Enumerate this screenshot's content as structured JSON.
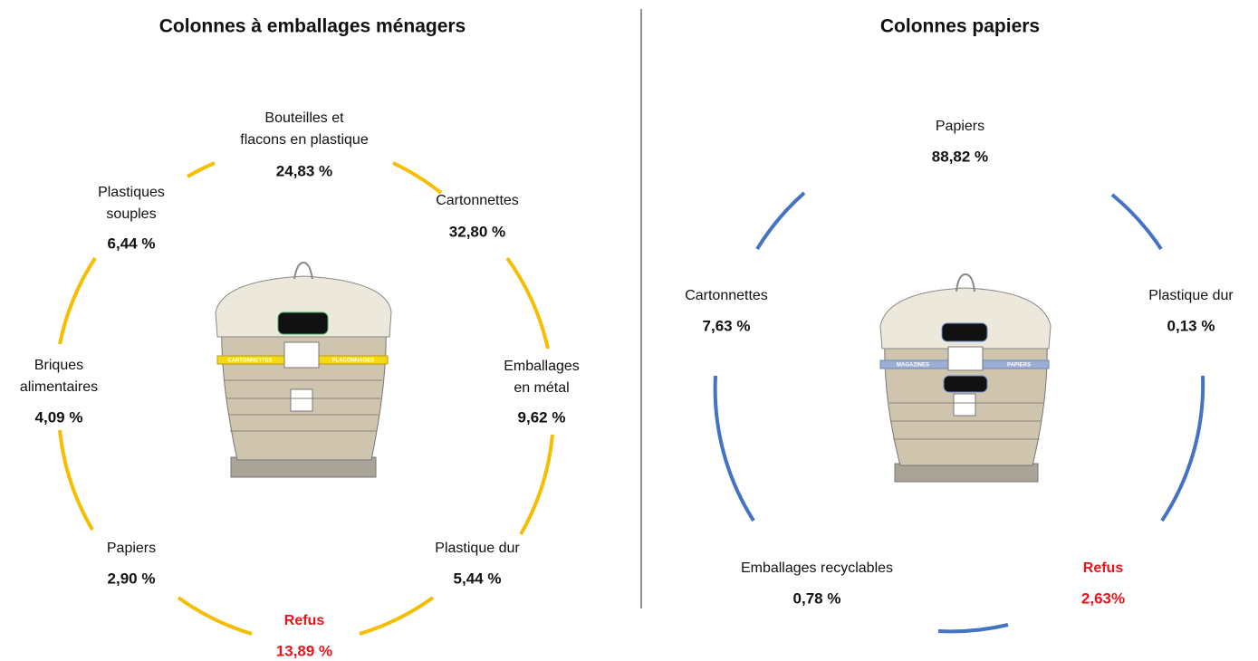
{
  "panels": [
    {
      "title": "Colonnes à emballages ménagers",
      "bin_labels": [
        "CARTONNETTES",
        "FLACONNAGES"
      ],
      "items": [
        {
          "label": [
            "Bouteilles et",
            "flacons en plastique"
          ],
          "value": "24,83 %"
        },
        {
          "label": [
            "Cartonnettes"
          ],
          "value": "32,80 %"
        },
        {
          "label": [
            "Plastiques",
            "souples"
          ],
          "value": "6,44 %"
        },
        {
          "label": [
            "Emballages",
            "en métal"
          ],
          "value": "9,62 %"
        },
        {
          "label": [
            "Briques",
            "alimentaires"
          ],
          "value": "4,09 %"
        },
        {
          "label": [
            "Papiers"
          ],
          "value": "2,90 %"
        },
        {
          "label": [
            "Plastique dur"
          ],
          "value": "5,44 %"
        },
        {
          "label": [
            "Refus"
          ],
          "value": "13,89 %"
        }
      ]
    },
    {
      "title": "Colonnes papiers",
      "bin_labels": [
        "MAGAZINES",
        "PAPIERS"
      ],
      "items": [
        {
          "label": [
            "Papiers"
          ],
          "value": "88,82 %"
        },
        {
          "label": [
            "Cartonnettes"
          ],
          "value": "7,63 %"
        },
        {
          "label": [
            "Plastique dur"
          ],
          "value": "0,13 %"
        },
        {
          "label": [
            "Emballages recyclables"
          ],
          "value": "0,78 %"
        },
        {
          "label": [
            "Refus"
          ],
          "value": "2,63%"
        }
      ]
    }
  ]
}
